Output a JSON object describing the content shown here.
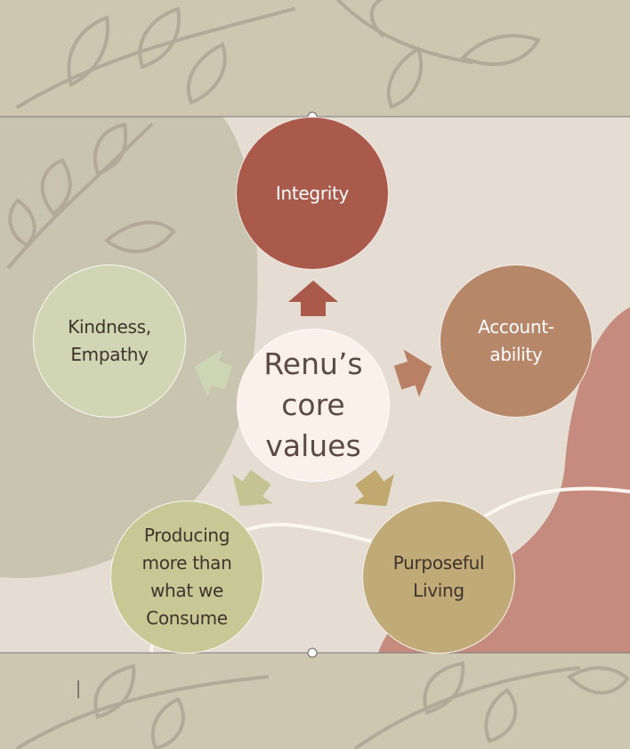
{
  "diagram": {
    "center": {
      "label": "Renu’s\ncore\nvalues",
      "color": "#fbf0ea"
    },
    "nodes": [
      {
        "id": "integrity",
        "label": "Integrity",
        "color": "#aa5a4b",
        "text_color": "#ffffff",
        "arrow_color": "#aa5a4b"
      },
      {
        "id": "accountability",
        "label": "Account-\nability",
        "color": "#b7876a",
        "text_color": "#ffffff",
        "arrow_color": "#b88064"
      },
      {
        "id": "purposeful-living",
        "label": "Purposeful\nLiving",
        "color": "#c0aa78",
        "text_color": "#3f342d",
        "arrow_color": "#c0a86f"
      },
      {
        "id": "producing",
        "label": "Producing\nmore than\nwhat we\nConsume",
        "color": "#c8c897",
        "text_color": "#3f342d",
        "arrow_color": "#c3c393"
      },
      {
        "id": "kindness",
        "label": "Kindness,\nEmpathy",
        "color": "#d0d6b3",
        "text_color": "#3f342d",
        "arrow_color": "#cdd6b4"
      }
    ]
  },
  "colors": {
    "slide_background": "#e5ddd4",
    "band_background": "#cdc6b1",
    "leaf_color": "#b3a998",
    "blob_left": "#c9c4b0",
    "blob_right": "#c48b7e"
  }
}
